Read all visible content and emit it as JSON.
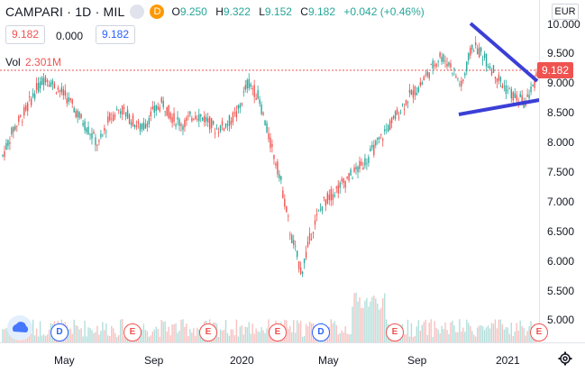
{
  "header": {
    "symbol": "CAMPARI · 1D · MIL",
    "badge_d": "D",
    "ohlc": [
      {
        "k": "O",
        "v": "9.250"
      },
      {
        "k": "H",
        "v": "9.322"
      },
      {
        "k": "L",
        "v": "9.152"
      },
      {
        "k": "C",
        "v": "9.182"
      }
    ],
    "change": "+0.042 (+0.46%)"
  },
  "price_box_sell": "9.182",
  "spread": "0.000",
  "price_box_buy": "9.182",
  "volume": {
    "label": "Vol",
    "value": "2.301M"
  },
  "currency": "EUR",
  "current_price_tag": "9.182",
  "colors": {
    "up": "#26a69a",
    "down": "#ef5350",
    "trendline": "#3b3fd6",
    "accent": "#2962ff"
  },
  "y_ticks": [
    "10.000",
    "9.500",
    "9.000",
    "8.500",
    "8.000",
    "7.500",
    "7.000",
    "6.500",
    "6.000",
    "5.500",
    "5.000"
  ],
  "x_ticks": [
    "May",
    "Sep",
    "2020",
    "May",
    "Sep",
    "2021"
  ],
  "events": [
    "D",
    "E",
    "E",
    "E",
    "D",
    "E",
    "E"
  ],
  "icons": {
    "settings": "gear-icon",
    "logo": "tradingview-cloud-icon",
    "badge": "delay-badge-icon"
  },
  "chart_data": {
    "type": "candlestick",
    "ylim": [
      4.6,
      10.2
    ],
    "series": [
      {
        "name": "price",
        "values": [
          7.7,
          8.2,
          8.5,
          8.9,
          9.2,
          9.0,
          8.8,
          8.5,
          8.2,
          7.9,
          8.4,
          8.6,
          8.4,
          8.2,
          8.5,
          8.7,
          8.4,
          8.3,
          8.5,
          8.4,
          8.2,
          8.3,
          8.5,
          9.1,
          8.8,
          8.0,
          7.3,
          6.2,
          5.5,
          6.3,
          6.8,
          7.0,
          7.2,
          7.4,
          7.6,
          7.9,
          8.2,
          8.5,
          8.8,
          9.0,
          9.3,
          9.6,
          9.4,
          9.0,
          9.8,
          9.6,
          9.3,
          9.0,
          8.8,
          8.7,
          9.18
        ]
      }
    ]
  }
}
